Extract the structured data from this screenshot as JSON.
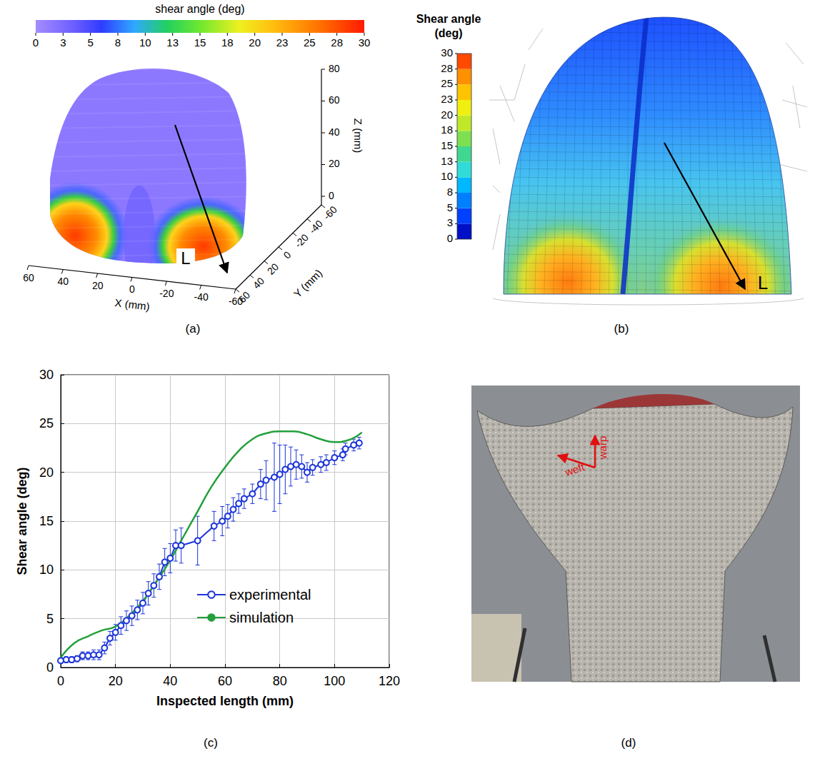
{
  "captions": [
    "(a)",
    "(b)",
    "(c)",
    "(d)"
  ],
  "panels": {
    "a": {
      "colorbar": {
        "label": "shear angle (deg)",
        "range": [
          0,
          30
        ],
        "ticks": [
          0,
          {
            "value": 2.5,
            "label": "3"
          },
          5,
          {
            "value": 7.5,
            "label": "8"
          },
          10,
          {
            "value": 12.5,
            "label": "13"
          },
          15,
          {
            "value": 17.5,
            "label": "18"
          },
          20,
          {
            "value": 22.5,
            "label": "23"
          },
          25,
          {
            "value": 27.5,
            "label": "28"
          },
          30
        ]
      },
      "x_axis": {
        "label": "X (mm)",
        "range": [
          60,
          -60
        ],
        "ticks": [
          60,
          40,
          20,
          0,
          -20,
          -40,
          -60
        ]
      },
      "y_axis": {
        "label": "Y (mm)",
        "range": [
          60,
          -60
        ],
        "ticks": [
          60,
          40,
          20,
          0,
          -20,
          -40,
          -60
        ]
      },
      "z_axis": {
        "label": "Z (mm)",
        "range": [
          0,
          80
        ],
        "ticks": [
          0,
          20,
          40,
          60,
          80
        ]
      },
      "path_label": "L"
    },
    "b": {
      "colorbar": {
        "label": "Shear angle (deg)",
        "range": [
          0,
          30
        ],
        "ticks": [
          0,
          {
            "value": 2.5,
            "label": "3"
          },
          5,
          {
            "value": 7.5,
            "label": "8"
          },
          10,
          {
            "value": 12.5,
            "label": "13"
          },
          15,
          {
            "value": 17.5,
            "label": "18"
          },
          20,
          {
            "value": 22.5,
            "label": "23"
          },
          25,
          {
            "value": 27.5,
            "label": "28"
          },
          30
        ]
      },
      "path_label": "L"
    },
    "d": {
      "arrows": [
        "weft",
        "warp"
      ]
    }
  },
  "chart_data": {
    "type": "line",
    "xlabel": "Inspected length (mm)",
    "ylabel": "Shear angle (deg)",
    "xlim": [
      0,
      120
    ],
    "xticks": [
      0,
      20,
      40,
      60,
      80,
      100,
      120
    ],
    "ylim": [
      0,
      30
    ],
    "yticks": [
      0,
      5,
      10,
      15,
      20,
      25,
      30
    ],
    "grid": true,
    "legend": "lower right",
    "series": [
      {
        "name": "experimental",
        "color": "#1c34d8",
        "marker": "circle",
        "line_style": "solid",
        "x": [
          0,
          2,
          4,
          6,
          8,
          10,
          12,
          14,
          16,
          18,
          20,
          22,
          24,
          26,
          28,
          30,
          32,
          34,
          36,
          38,
          40,
          42,
          44,
          50,
          56,
          59,
          61,
          63,
          65,
          67,
          70,
          73,
          75,
          78,
          80,
          82,
          84,
          86,
          88,
          90,
          92,
          95,
          97,
          100,
          103,
          104,
          107,
          109
        ],
        "values": [
          0.7,
          0.8,
          0.8,
          0.9,
          1.2,
          1.2,
          1.3,
          1.3,
          2.0,
          3.0,
          3.6,
          4.3,
          4.8,
          5.3,
          5.9,
          6.6,
          7.6,
          8.4,
          9.3,
          10.8,
          11.2,
          12.5,
          12.5,
          13.0,
          14.5,
          15.0,
          15.5,
          16.2,
          16.8,
          17.3,
          17.8,
          18.8,
          19.2,
          19.5,
          19.8,
          20.3,
          20.6,
          20.8,
          20.6,
          20.0,
          20.5,
          20.8,
          21.0,
          21.5,
          21.8,
          22.4,
          22.8,
          23.0
        ],
        "error": [
          0.3,
          0.3,
          0.3,
          0.3,
          0.4,
          0.4,
          0.5,
          0.5,
          0.6,
          0.7,
          0.8,
          0.9,
          1.0,
          1.0,
          1.0,
          1.1,
          1.2,
          1.2,
          1.3,
          1.4,
          1.5,
          1.6,
          1.8,
          2.5,
          1.5,
          1.5,
          1.2,
          1.2,
          1.0,
          1.0,
          1.0,
          1.5,
          2.0,
          3.5,
          3.0,
          2.5,
          2.0,
          1.5,
          1.2,
          1.0,
          0.8,
          0.8,
          0.8,
          0.7,
          0.6,
          0.6,
          0.6,
          0.6
        ]
      },
      {
        "name": "simulation",
        "color": "#22a03c",
        "marker": "none",
        "line_style": "solid",
        "x": [
          0,
          5,
          10,
          15,
          20,
          25,
          30,
          35,
          40,
          45,
          50,
          55,
          60,
          65,
          70,
          75,
          80,
          85,
          90,
          95,
          100,
          105,
          110
        ],
        "values": [
          1.0,
          2.5,
          3.2,
          3.8,
          4.2,
          5.3,
          6.8,
          8.8,
          11.0,
          13.5,
          16.0,
          18.5,
          20.5,
          22.2,
          23.4,
          24.0,
          24.2,
          24.2,
          23.9,
          23.4,
          23.1,
          23.3,
          24.1
        ]
      }
    ]
  }
}
